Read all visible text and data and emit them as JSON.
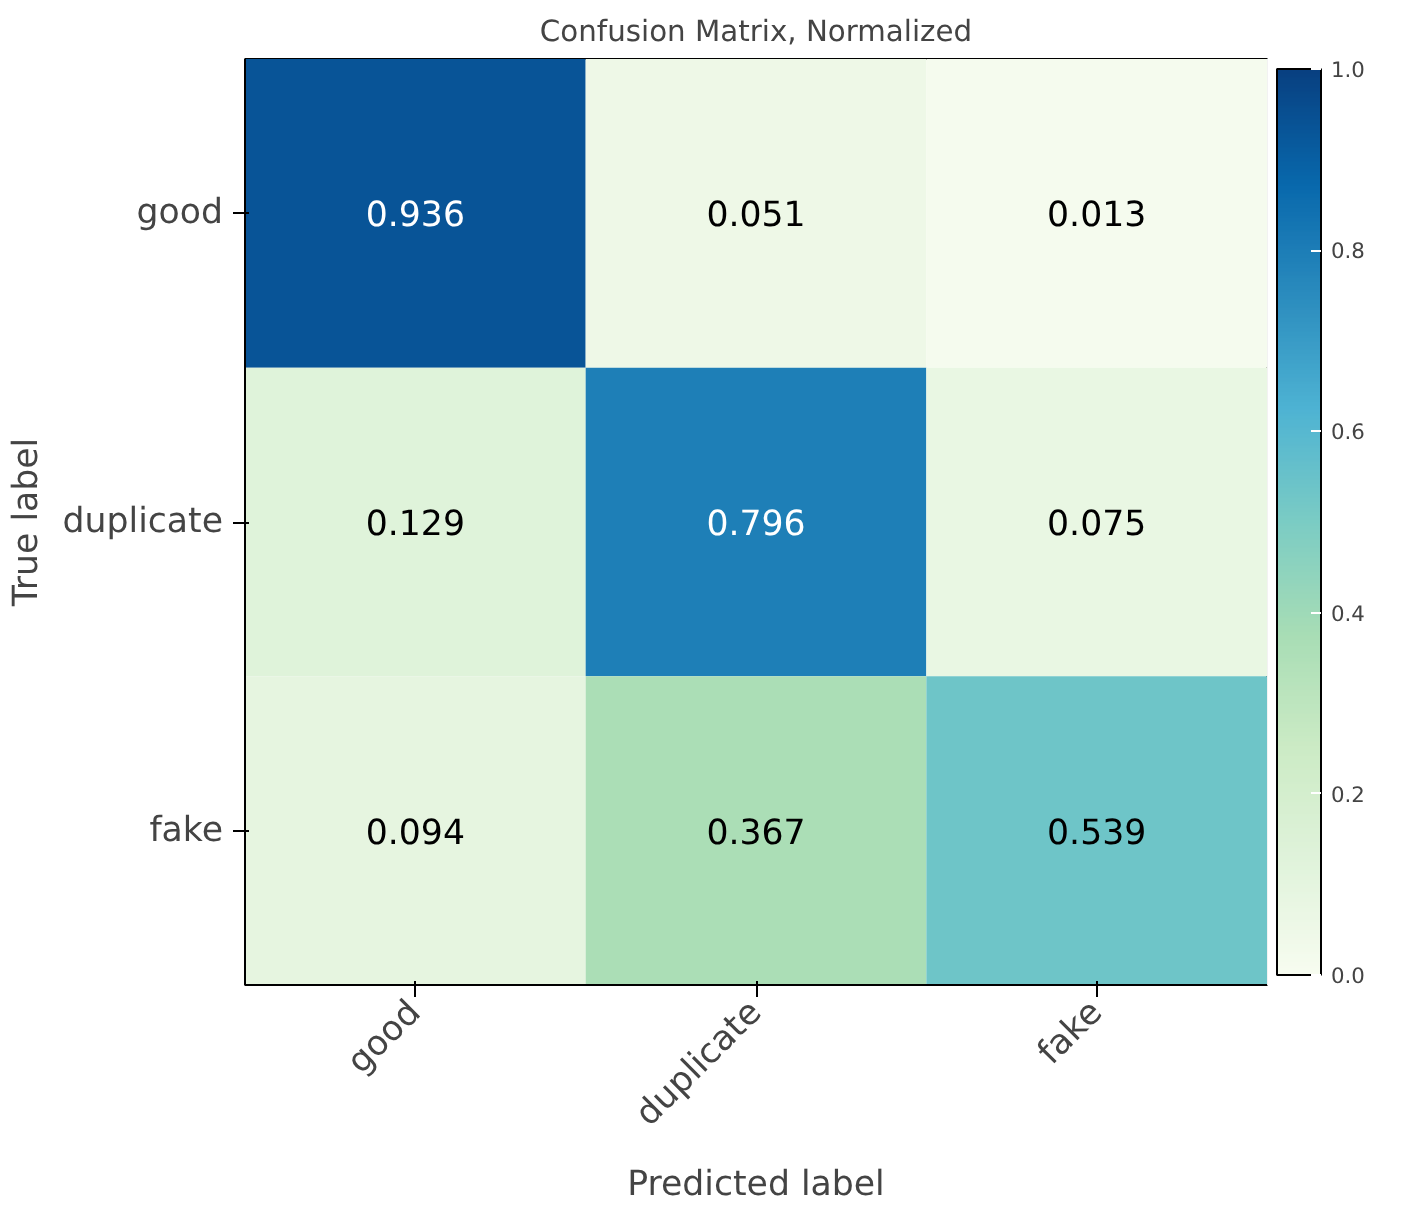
{
  "chart_data": {
    "type": "heatmap",
    "title": "Confusion Matrix, Normalized",
    "xlabel": "Predicted label",
    "ylabel": "True label",
    "categories": [
      "good",
      "duplicate",
      "fake"
    ],
    "y_categories": [
      "good",
      "duplicate",
      "fake"
    ],
    "cells": [
      [
        0.936,
        0.051,
        0.013
      ],
      [
        0.129,
        0.796,
        0.075
      ],
      [
        0.094,
        0.367,
        0.539
      ]
    ],
    "data_labels": true,
    "clim": [
      0,
      1
    ],
    "cticks": [
      {
        "value": 0,
        "label": "0.0"
      },
      {
        "value": 0.2,
        "label": "0.2"
      },
      {
        "value": 0.4,
        "label": "0.4"
      },
      {
        "value": 0.6,
        "label": "0.6"
      },
      {
        "value": 0.8,
        "label": "0.8"
      },
      {
        "value": 1,
        "label": "1.0"
      }
    ]
  }
}
